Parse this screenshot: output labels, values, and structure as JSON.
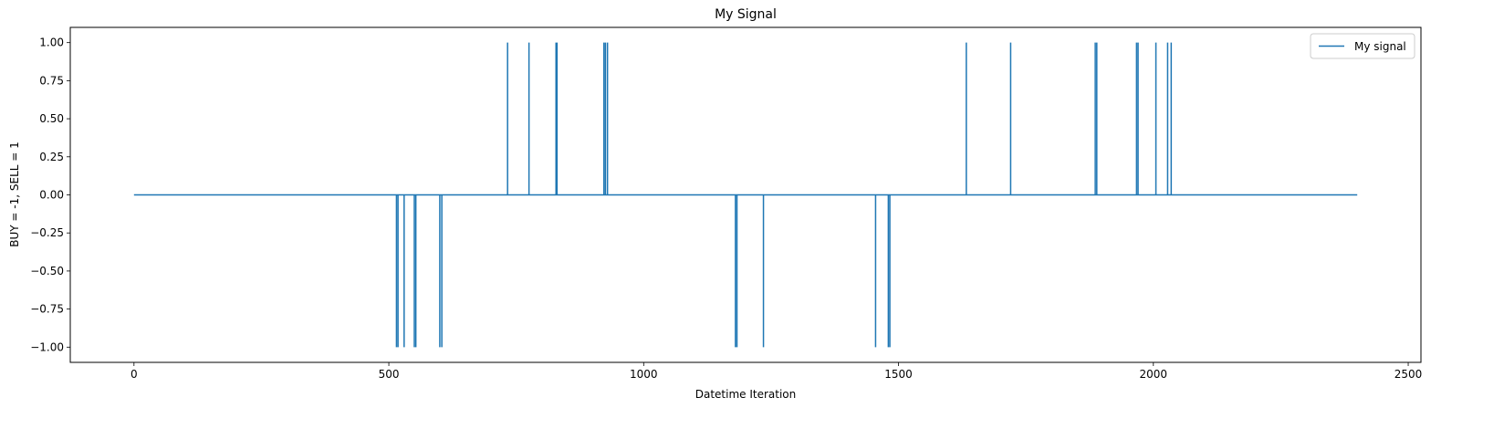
{
  "chart_data": {
    "type": "line",
    "title": "My Signal",
    "xlabel": "Datetime Iteration",
    "ylabel": "BUY = -1, SELL = 1",
    "xlim": [
      -125,
      2525
    ],
    "ylim": [
      -1.1,
      1.1
    ],
    "x_ticks": [
      0,
      500,
      1000,
      1500,
      2000,
      2500
    ],
    "y_ticks": [
      1.0,
      0.75,
      0.5,
      0.25,
      0.0,
      -0.25,
      -0.5,
      -0.75,
      -1.0
    ],
    "x_tick_labels": [
      "0",
      "500",
      "1000",
      "1500",
      "2000",
      "2500"
    ],
    "y_tick_labels": [
      "1.00",
      "0.75",
      "0.50",
      "0.25",
      "0.00",
      "−0.25",
      "−0.50",
      "−0.75",
      "−1.00"
    ],
    "grid": false,
    "legend_position": "top-right",
    "series": [
      {
        "name": "My signal",
        "color": "#1f77b4",
        "x_range": [
          0,
          2400
        ],
        "baseline": 0,
        "spikes": [
          {
            "x": 515,
            "y": -1
          },
          {
            "x": 518,
            "y": -1
          },
          {
            "x": 530,
            "y": -1
          },
          {
            "x": 550,
            "y": -1
          },
          {
            "x": 553,
            "y": -1
          },
          {
            "x": 600,
            "y": -1
          },
          {
            "x": 604,
            "y": -1
          },
          {
            "x": 733,
            "y": 1
          },
          {
            "x": 775,
            "y": 1
          },
          {
            "x": 828,
            "y": 1
          },
          {
            "x": 830,
            "y": 1
          },
          {
            "x": 922,
            "y": 1
          },
          {
            "x": 925,
            "y": 1
          },
          {
            "x": 929,
            "y": 1
          },
          {
            "x": 1180,
            "y": -1
          },
          {
            "x": 1183,
            "y": -1
          },
          {
            "x": 1235,
            "y": -1
          },
          {
            "x": 1455,
            "y": -1
          },
          {
            "x": 1480,
            "y": -1
          },
          {
            "x": 1483,
            "y": -1
          },
          {
            "x": 1633,
            "y": 1
          },
          {
            "x": 1720,
            "y": 1
          },
          {
            "x": 1886,
            "y": 1
          },
          {
            "x": 1889,
            "y": 1
          },
          {
            "x": 1967,
            "y": 1
          },
          {
            "x": 1970,
            "y": 1
          },
          {
            "x": 2005,
            "y": 1
          },
          {
            "x": 2028,
            "y": 1
          },
          {
            "x": 2035,
            "y": 1
          }
        ]
      }
    ]
  }
}
